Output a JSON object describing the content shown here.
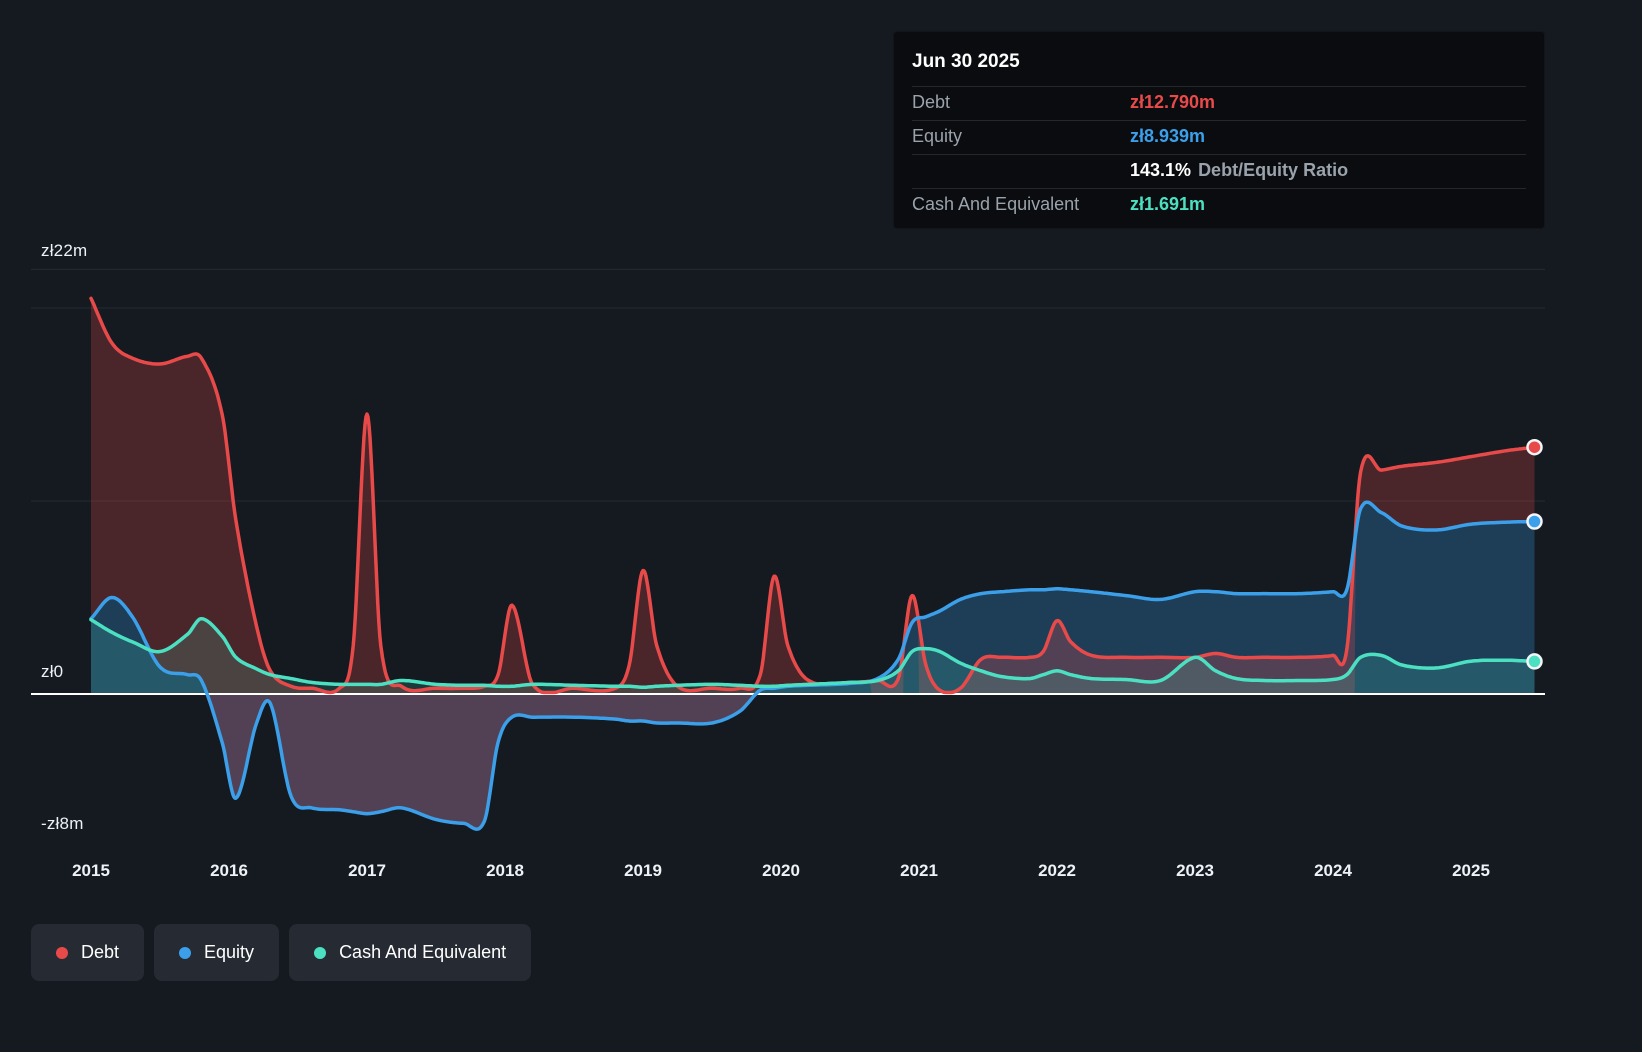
{
  "tooltip": {
    "title": "Jun 30 2025",
    "debt_row": {
      "label": "Debt",
      "value": "zł12.790m"
    },
    "equity_row": {
      "label": "Equity",
      "value": "zł8.939m"
    },
    "ratio_row": {
      "value": "143.1%",
      "label": "Debt/Equity Ratio"
    },
    "cash_row": {
      "label": "Cash And Equivalent",
      "value": "zł1.691m"
    }
  },
  "colors": {
    "debt": "#e84a4a",
    "equity": "#3b9fe9",
    "cash": "#4ce0c2",
    "zero_line": "#ffffff",
    "grid": "#242a33",
    "background": "#141a20",
    "tooltip_bg": "#0a0c0f",
    "legend_bg": "#262b33",
    "text_muted": "#9aa2ab",
    "text": "#ffffff"
  },
  "chart_data": {
    "type": "area",
    "currency": "zł",
    "xlim": [
      2015,
      2025.46
    ],
    "ylim": [
      -8.3,
      22.8
    ],
    "x_ticks": [
      2015,
      2016,
      2017,
      2018,
      2019,
      2020,
      2021,
      2022,
      2023,
      2024,
      2025
    ],
    "y_ticks": [
      {
        "label": "zł22m",
        "value": 22
      },
      {
        "label": "zł0",
        "value": 0
      },
      {
        "label": "-zł8m",
        "value": -8
      }
    ],
    "grid_values": [
      22,
      20,
      10
    ],
    "zero_value": 0,
    "x": [
      2015.0,
      2015.15,
      2015.3,
      2015.5,
      2015.7,
      2015.8,
      2015.95,
      2016.05,
      2016.2,
      2016.3,
      2016.45,
      2016.6,
      2016.8,
      2016.9,
      2017.0,
      2017.1,
      2017.25,
      2017.5,
      2017.7,
      2017.85,
      2017.95,
      2018.05,
      2018.2,
      2018.5,
      2018.8,
      2018.9,
      2019.0,
      2019.1,
      2019.25,
      2019.5,
      2019.7,
      2019.85,
      2019.95,
      2020.05,
      2020.2,
      2020.5,
      2020.7,
      2020.85,
      2020.95,
      2021.05,
      2021.15,
      2021.3,
      2021.45,
      2021.6,
      2021.8,
      2021.9,
      2022.0,
      2022.1,
      2022.25,
      2022.5,
      2022.75,
      2023.0,
      2023.15,
      2023.3,
      2023.5,
      2023.75,
      2024.0,
      2024.1,
      2024.2,
      2024.35,
      2024.5,
      2024.75,
      2025.0,
      2025.25,
      2025.46
    ],
    "series": [
      {
        "name": "Debt",
        "color_key": "debt",
        "end_value_label": "zł12.790m",
        "values": [
          20.5,
          18.2,
          17.4,
          17.1,
          17.5,
          17.4,
          14.5,
          9.0,
          3.5,
          1.2,
          0.4,
          0.3,
          0.3,
          2.5,
          14.5,
          2.5,
          0.4,
          0.3,
          0.3,
          0.4,
          1.0,
          4.6,
          0.5,
          0.3,
          0.3,
          1.5,
          6.4,
          2.5,
          0.4,
          0.3,
          0.3,
          1.0,
          6.1,
          2.5,
          0.7,
          0.6,
          0.7,
          0.8,
          5.1,
          1.5,
          0.2,
          0.3,
          1.8,
          1.9,
          1.9,
          2.2,
          3.8,
          2.7,
          2.0,
          1.9,
          1.9,
          1.9,
          2.1,
          1.9,
          1.9,
          1.9,
          2.0,
          2.3,
          11.5,
          11.6,
          11.8,
          12.0,
          12.3,
          12.6,
          12.79
        ]
      },
      {
        "name": "Equity",
        "color_key": "equity",
        "end_value_label": "zł8.939m",
        "values": [
          3.9,
          5.0,
          4.0,
          1.4,
          1.0,
          0.7,
          -2.5,
          -5.4,
          -1.5,
          -0.5,
          -5.3,
          -5.9,
          -6.0,
          -6.1,
          -6.2,
          -6.1,
          -5.9,
          -6.5,
          -6.7,
          -6.6,
          -2.5,
          -1.2,
          -1.2,
          -1.2,
          -1.3,
          -1.4,
          -1.4,
          -1.5,
          -1.5,
          -1.5,
          -0.9,
          0.2,
          0.3,
          0.4,
          0.45,
          0.55,
          0.8,
          1.8,
          3.7,
          4.0,
          4.3,
          4.9,
          5.2,
          5.3,
          5.4,
          5.4,
          5.45,
          5.4,
          5.3,
          5.1,
          4.9,
          5.3,
          5.3,
          5.2,
          5.2,
          5.2,
          5.3,
          5.4,
          9.6,
          9.4,
          8.7,
          8.5,
          8.8,
          8.9,
          8.939
        ]
      },
      {
        "name": "Cash And Equivalent",
        "color_key": "cash",
        "end_value_label": "zł1.691m",
        "values": [
          3.85,
          3.2,
          2.7,
          2.2,
          3.1,
          3.9,
          3.0,
          1.9,
          1.3,
          1.0,
          0.8,
          0.6,
          0.5,
          0.5,
          0.5,
          0.5,
          0.7,
          0.5,
          0.45,
          0.45,
          0.4,
          0.4,
          0.5,
          0.45,
          0.4,
          0.4,
          0.35,
          0.4,
          0.45,
          0.5,
          0.45,
          0.4,
          0.4,
          0.45,
          0.5,
          0.6,
          0.7,
          1.2,
          2.2,
          2.35,
          2.2,
          1.6,
          1.2,
          0.9,
          0.8,
          1.0,
          1.2,
          1.0,
          0.8,
          0.75,
          0.7,
          1.9,
          1.2,
          0.8,
          0.7,
          0.7,
          0.75,
          1.0,
          1.9,
          2.0,
          1.5,
          1.35,
          1.7,
          1.75,
          1.691
        ]
      }
    ]
  }
}
